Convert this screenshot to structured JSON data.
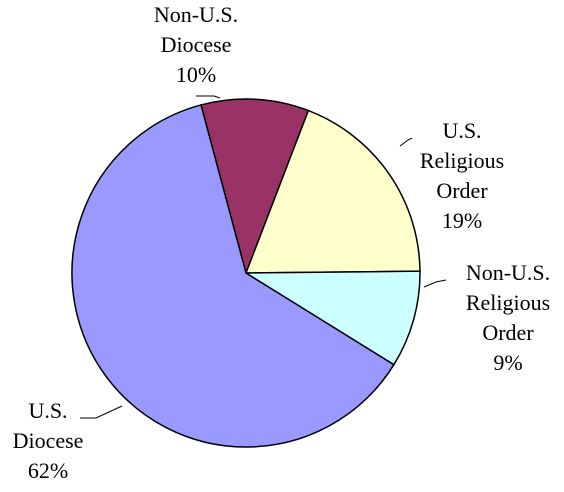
{
  "chart_data": {
    "type": "pie",
    "title": "",
    "slices": [
      {
        "label_lines": [
          "Non-U.S.",
          "Diocese"
        ],
        "percent_label": "10%",
        "value": 10,
        "color": "#993366"
      },
      {
        "label_lines": [
          "U.S.",
          "Religious",
          "Order"
        ],
        "percent_label": "19%",
        "value": 19,
        "color": "#ffffcc"
      },
      {
        "label_lines": [
          "Non-U.S.",
          "Religious",
          "Order"
        ],
        "percent_label": "9%",
        "value": 9,
        "color": "#ccffff"
      },
      {
        "label_lines": [
          "U.S.",
          "Diocese"
        ],
        "percent_label": "62%",
        "value": 62,
        "color": "#9999ff"
      }
    ],
    "legend": "none",
    "grid": false
  }
}
